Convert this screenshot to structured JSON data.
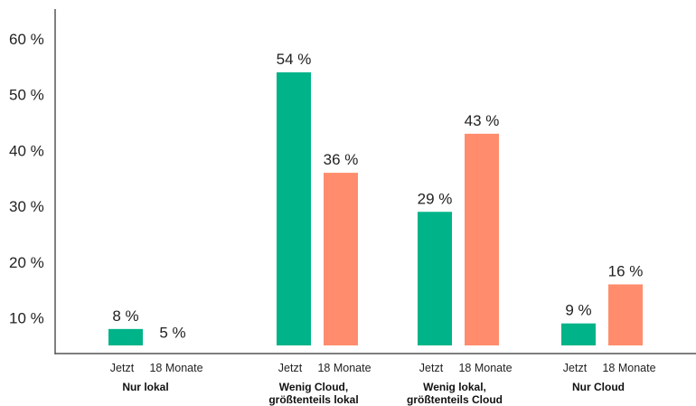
{
  "chart_data": {
    "type": "bar",
    "title": "",
    "xlabel": "",
    "ylabel": "",
    "ylim": [
      5,
      63
    ],
    "yticks": [
      "10 %",
      "20 %",
      "30 %",
      "40 %",
      "50 %",
      "60 %"
    ],
    "ytick_values": [
      10,
      20,
      30,
      40,
      50,
      60
    ],
    "categories": [
      [
        "Nur lokal"
      ],
      [
        "Wenig Cloud,",
        "größtenteils lokal"
      ],
      [
        "Wenig lokal,",
        "größtenteils Cloud"
      ],
      [
        "Nur Cloud"
      ]
    ],
    "series": [
      {
        "name": "Jetzt",
        "color": "#00b388",
        "values": [
          8,
          54,
          29,
          9
        ],
        "labels": [
          "8 %",
          "54 %",
          "29 %",
          "9 %"
        ]
      },
      {
        "name": "18 Monate",
        "color": "#ff8d6d",
        "values": [
          5,
          36,
          43,
          16
        ],
        "labels": [
          "5 %",
          "36 %",
          "43 %",
          "16 %"
        ]
      }
    ],
    "grid": false,
    "legend": "none"
  },
  "colors": {
    "axis": "#555555",
    "text": "#222222"
  }
}
